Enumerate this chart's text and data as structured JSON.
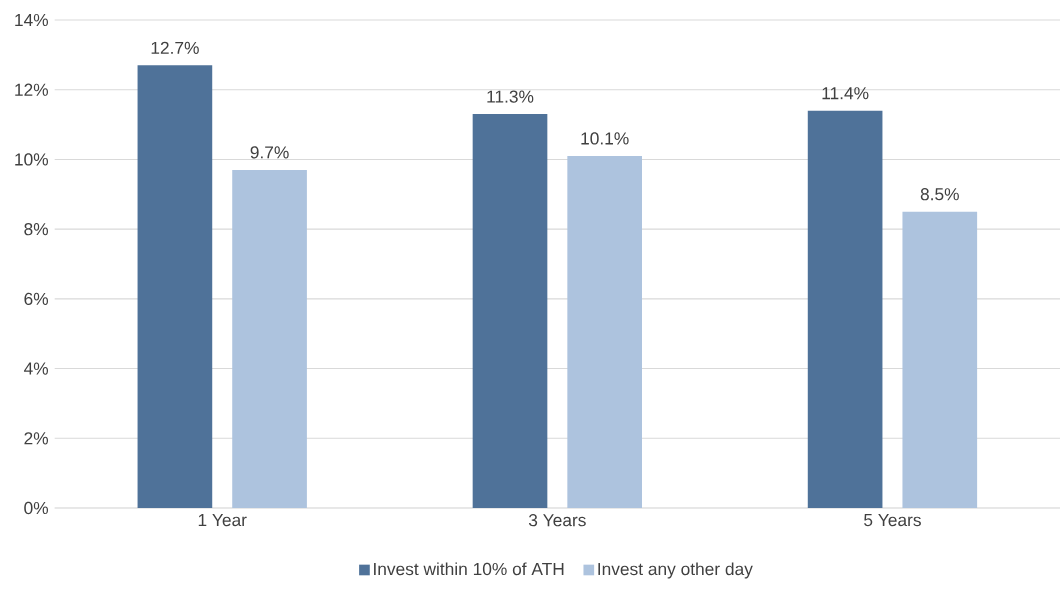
{
  "chart_data": {
    "type": "bar",
    "categories": [
      "1 Year",
      "3 Years",
      "5 Years"
    ],
    "series": [
      {
        "name": "Invest within 10% of ATH",
        "color": "#4f7299",
        "values": [
          12.7,
          11.3,
          11.4
        ],
        "value_labels": [
          "12.7%",
          "11.3%",
          "11.4%"
        ]
      },
      {
        "name": "Invest any other day",
        "color": "#adc3de",
        "values": [
          9.7,
          10.1,
          8.5
        ],
        "value_labels": [
          "9.7%",
          "10.1%",
          "8.5%"
        ]
      }
    ],
    "ylim": [
      0,
      14
    ],
    "yticks": [
      {
        "value": 0,
        "label": "0%"
      },
      {
        "value": 2,
        "label": "2%"
      },
      {
        "value": 4,
        "label": "4%"
      },
      {
        "value": 6,
        "label": "6%"
      },
      {
        "value": 8,
        "label": "8%"
      },
      {
        "value": 10,
        "label": "10%"
      },
      {
        "value": 12,
        "label": "12%"
      },
      {
        "value": 14,
        "label": "14%"
      }
    ],
    "grid": "y",
    "legend": "bottom"
  }
}
